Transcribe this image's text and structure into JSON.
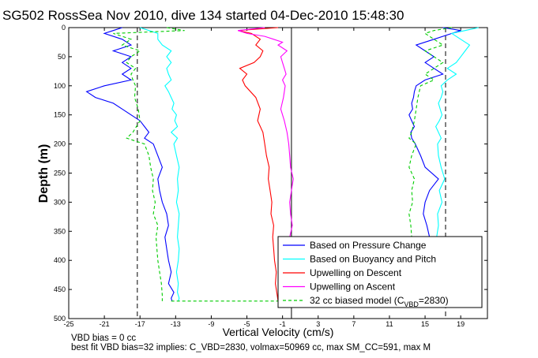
{
  "chart_data": {
    "type": "line",
    "title": "SG502 RossSea Nov 2010, dive 134 started 04-Dec-2010 15:48:30",
    "xlabel": "Vertical Velocity (cm/s)",
    "ylabel": "Depth (m)",
    "xlim": [
      -25,
      22
    ],
    "ylim": [
      500,
      0
    ],
    "y_reversed": true,
    "grid": false,
    "legend_position": "bottom-right",
    "xticks": [
      "-25",
      "-21",
      "-17",
      "-13",
      "-9",
      "-5",
      "-1",
      "3",
      "7",
      "11",
      "15",
      "19"
    ],
    "yticks": [
      "0",
      "50",
      "100",
      "150",
      "200",
      "250",
      "300",
      "350",
      "400",
      "450",
      "500"
    ],
    "reference_lines_dashed": [
      -17.3,
      17.3
    ],
    "reference_lines_solid": [
      0
    ],
    "series": [
      {
        "name": "Based on Pressure Change",
        "color": "#0000ff",
        "depth": [
          0,
          5,
          10,
          20,
          30,
          40,
          50,
          60,
          70,
          80,
          90,
          100,
          110,
          120,
          130,
          140,
          150,
          160,
          170,
          180,
          190,
          200,
          220,
          240,
          260,
          280,
          300,
          320,
          340,
          360,
          380,
          400,
          420,
          440,
          455,
          465,
          470
        ],
        "descent": [
          -19,
          -20,
          -21,
          -19,
          -18,
          -20,
          -18,
          -19,
          -18,
          -19,
          -18,
          -21,
          -23,
          -22,
          -20,
          -19,
          -18,
          -17,
          -16.5,
          -16,
          -16.5,
          -15.5,
          -15,
          -14.5,
          -15,
          -14.8,
          -14.5,
          -14,
          -13.8,
          -14.2,
          -14,
          -13.8,
          -13.5,
          -13.8,
          -13.2,
          -13.5,
          -13.4
        ],
        "ascent": [
          17,
          19,
          18,
          16,
          14,
          15,
          16,
          15,
          16,
          17,
          15,
          14,
          13.8,
          13.7,
          13.5,
          13.6,
          13.2,
          13.5,
          13.8,
          13.4,
          13.5,
          13.9,
          14.5,
          15,
          16.5,
          15.5,
          15,
          14.8,
          15.2,
          15.5,
          15.3,
          null,
          null,
          null,
          null,
          null,
          null
        ]
      },
      {
        "name": "Based on Buoyancy and Pitch",
        "color": "#00ffff",
        "depth": [
          0,
          5,
          10,
          20,
          30,
          40,
          50,
          60,
          70,
          80,
          90,
          100,
          110,
          120,
          130,
          140,
          150,
          160,
          170,
          180,
          190,
          200,
          220,
          240,
          260,
          280,
          300,
          320,
          340,
          360,
          380,
          400,
          420,
          440,
          455,
          465,
          470
        ],
        "descent": [
          -17,
          -16,
          -15,
          -15,
          -14.5,
          -13.5,
          -14,
          -13.5,
          -14,
          -13.8,
          -13.5,
          -14.2,
          -13.8,
          -13.5,
          -13.2,
          -13.4,
          -12.9,
          -13.1,
          -12.8,
          -13.5,
          -12.8,
          -13.2,
          -12.9,
          -12.6,
          -12.8,
          -12.7,
          -12.9,
          -12.6,
          -12.7,
          -12.8,
          -12.6,
          -12.7,
          -12.9,
          -12.7,
          -12.8,
          -12.6,
          -12.7
        ],
        "ascent": [
          21,
          19.5,
          18,
          19,
          20,
          19.5,
          19,
          18.5,
          17.5,
          18.5,
          17.5,
          16.8,
          17,
          16.8,
          16.5,
          16.7,
          16.9,
          16.6,
          16.2,
          16.5,
          16.8,
          16.4,
          16.5,
          16.8,
          17.2,
          16.6,
          16.9,
          16.4,
          16.5,
          16.3,
          16.4,
          null,
          null,
          null,
          null,
          null,
          null
        ]
      },
      {
        "name": "Upwelling on Descent",
        "color": "#ff0000",
        "depth": [
          0,
          5,
          10,
          20,
          30,
          40,
          50,
          60,
          70,
          80,
          90,
          100,
          120,
          140,
          160,
          180,
          200,
          220,
          240,
          260,
          280,
          300,
          320,
          340,
          360,
          380,
          400,
          420,
          440,
          460,
          470
        ],
        "values": [
          -1.5,
          -6,
          -4.5,
          -3.5,
          -4,
          -3.2,
          -3.5,
          -4.2,
          -5.8,
          -5,
          -5.5,
          -5.2,
          -4,
          -3.5,
          -3.8,
          -3.2,
          -3,
          -2.8,
          -2.5,
          -2.6,
          -2.4,
          -2.2,
          -2.3,
          -2,
          -2.1,
          -2,
          -1.9,
          -1.7,
          -1.8,
          -1.6,
          -1.5
        ]
      },
      {
        "name": "Upwelling on Ascent",
        "color": "#ff00ff",
        "depth": [
          0,
          5,
          10,
          15,
          20,
          25,
          30,
          40,
          50,
          60,
          70,
          80,
          90,
          100,
          120,
          140,
          160,
          180,
          200,
          220,
          240,
          260,
          280,
          300,
          320,
          340,
          360,
          380
        ],
        "values": [
          -3,
          -6,
          -5,
          -3,
          -2,
          -1,
          -1.5,
          -0.5,
          -1.2,
          -1,
          -0.8,
          -0.6,
          -1,
          -0.7,
          -0.9,
          -1.2,
          -0.8,
          -0.5,
          -0.3,
          -0.2,
          -0.1,
          0.2,
          0,
          -0.2,
          -0.1,
          0.1,
          -0.2,
          0
        ]
      },
      {
        "name": "32 cc biased model (C_VBD=2830)",
        "color": "#00cc00",
        "dashed": true,
        "depth": [
          0,
          5,
          10,
          20,
          30,
          40,
          50,
          60,
          70,
          80,
          90,
          100,
          120,
          140,
          160,
          180,
          190,
          200,
          220,
          240,
          260,
          280,
          300,
          320,
          340,
          360,
          380,
          400,
          420,
          440,
          460,
          470
        ],
        "descent": [
          -14,
          -12,
          -20,
          -18,
          -19,
          -17,
          -18,
          -18.5,
          -17.5,
          -18,
          -17.8,
          -17.5,
          -17.6,
          -17.2,
          -17,
          -17.8,
          -18.5,
          -16.5,
          -16,
          -15.8,
          -15.5,
          -15.6,
          -15.3,
          -15.5,
          -15,
          -15.2,
          -15.1,
          -15,
          -14.8,
          -14.6,
          -14.5,
          -14.5
        ],
        "ascent": [
          18,
          16,
          15,
          16,
          17,
          15,
          16,
          17,
          16,
          15,
          16,
          14.5,
          14.2,
          14,
          13.8,
          13.5,
          13.2,
          14,
          13.5,
          13.2,
          13.8,
          13.5,
          13.6,
          13.2,
          13.4,
          13.5,
          13.3,
          null,
          null,
          null,
          null,
          null
        ]
      }
    ],
    "bottom_turn": {
      "depth": 470,
      "from_x": -13.5,
      "to_x": -1.5
    }
  },
  "legend": [
    {
      "label": "Based on Pressure Change",
      "color": "#0000ff",
      "dash": false
    },
    {
      "label": "Based on Buoyancy and Pitch",
      "color": "#00ffff",
      "dash": false
    },
    {
      "label": "Upwelling on Descent",
      "color": "#ff0000",
      "dash": false
    },
    {
      "label": "Upwelling on Ascent",
      "color": "#ff00ff",
      "dash": false
    },
    {
      "label_main": "32 cc biased model (C",
      "label_sub": "VBD",
      "label_end": "=2830)",
      "color": "#00cc00",
      "dash": true
    }
  ],
  "footer": {
    "line1": "VBD bias = 0 cc",
    "line2": "best fit VBD bias=32 implies: C_VBD=2830, volmax=50969 cc, max SM_CC=591, max M"
  }
}
